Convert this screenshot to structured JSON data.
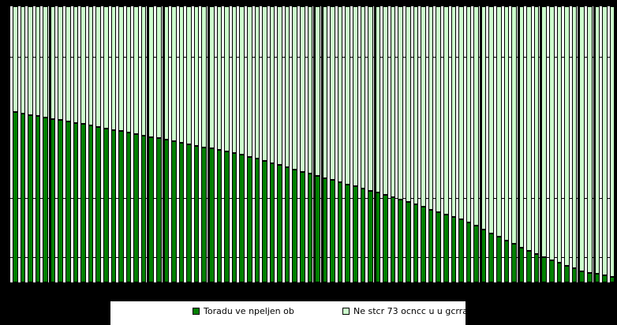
{
  "chart_data": {
    "type": "bar",
    "subtype": "stacked-100-percent",
    "title": "",
    "xlabel": "",
    "ylabel": "",
    "ylim": [
      0,
      100
    ],
    "n_bars": 80,
    "categories_note": "80 unlabeled bars sorted descending by dark-green share; no axis tick labels visible",
    "grid": "horizontal lines visible only in gaps between bars",
    "gridline_fractions_from_top": [
      0.183,
      0.694,
      0.909
    ],
    "legend_position": "bottom",
    "series": [
      {
        "name": "Toradu ve npeljen ob",
        "color": "#008000",
        "values": [
          61.4,
          60.9,
          60.4,
          60.0,
          59.5,
          59.0,
          58.5,
          58.0,
          57.6,
          57.1,
          56.6,
          56.1,
          55.5,
          55.0,
          54.5,
          54.0,
          53.5,
          52.9,
          52.4,
          51.9,
          51.4,
          50.9,
          50.3,
          49.8,
          49.2,
          48.7,
          48.2,
          47.6,
          47.1,
          46.5,
          46.0,
          45.2,
          44.5,
          43.7,
          42.9,
          42.2,
          41.4,
          40.6,
          39.8,
          39.1,
          38.3,
          37.5,
          36.7,
          36.0,
          35.2,
          34.4,
          33.6,
          32.8,
          32.1,
          31.3,
          30.5,
          29.6,
          28.7,
          27.8,
          26.9,
          26.0,
          25.1,
          24.2,
          23.2,
          22.3,
          21.4,
          20.0,
          18.7,
          17.3,
          16.0,
          14.6,
          13.4,
          12.2,
          11.0,
          9.7,
          8.5,
          7.5,
          6.5,
          5.5,
          4.5,
          3.5,
          3.0,
          2.5,
          2.0,
          1.5
        ]
      },
      {
        "name": "Ne stcr 73 ocncc u u gcrra",
        "color": "#ccffcc",
        "values": [
          38.6,
          39.1,
          39.6,
          40.0,
          40.5,
          41.0,
          41.5,
          42.0,
          42.4,
          42.9,
          43.4,
          43.9,
          44.5,
          45.0,
          45.5,
          46.0,
          46.5,
          47.1,
          47.6,
          48.1,
          48.6,
          49.1,
          49.7,
          50.2,
          50.8,
          51.3,
          51.8,
          52.4,
          52.9,
          53.5,
          54.0,
          54.8,
          55.5,
          56.3,
          57.1,
          57.8,
          58.6,
          59.4,
          60.2,
          60.9,
          61.7,
          62.5,
          63.3,
          64.0,
          64.8,
          65.6,
          66.4,
          67.2,
          67.9,
          68.7,
          69.5,
          70.4,
          71.3,
          72.2,
          73.1,
          74.0,
          74.9,
          75.8,
          76.8,
          77.7,
          78.6,
          80.0,
          81.3,
          82.7,
          84.0,
          85.4,
          86.6,
          87.8,
          89.0,
          90.3,
          91.5,
          92.5,
          93.5,
          94.5,
          95.5,
          96.5,
          97.0,
          97.5,
          98.0,
          98.5
        ]
      }
    ],
    "thick_separator_indices": [
      5,
      18,
      20,
      26,
      40,
      41,
      48,
      62,
      67,
      70,
      75,
      77
    ]
  },
  "legend": {
    "items": [
      {
        "label": "Toradu ve npeljen ob",
        "color": "#008000",
        "swatch": "dark-green-square"
      },
      {
        "label": "Ne stcr 73 ocncc u u gcrra",
        "color": "#ccffcc",
        "swatch": "light-green-square"
      }
    ],
    "note": "legend text is clipped at the bottom edge of the image; only top halves of glyphs visible"
  },
  "colors": {
    "background": "#000000",
    "plot_background": "#ffffff",
    "bar_border": "#000000",
    "dark_series": "#008000",
    "light_series": "#ccffcc"
  }
}
